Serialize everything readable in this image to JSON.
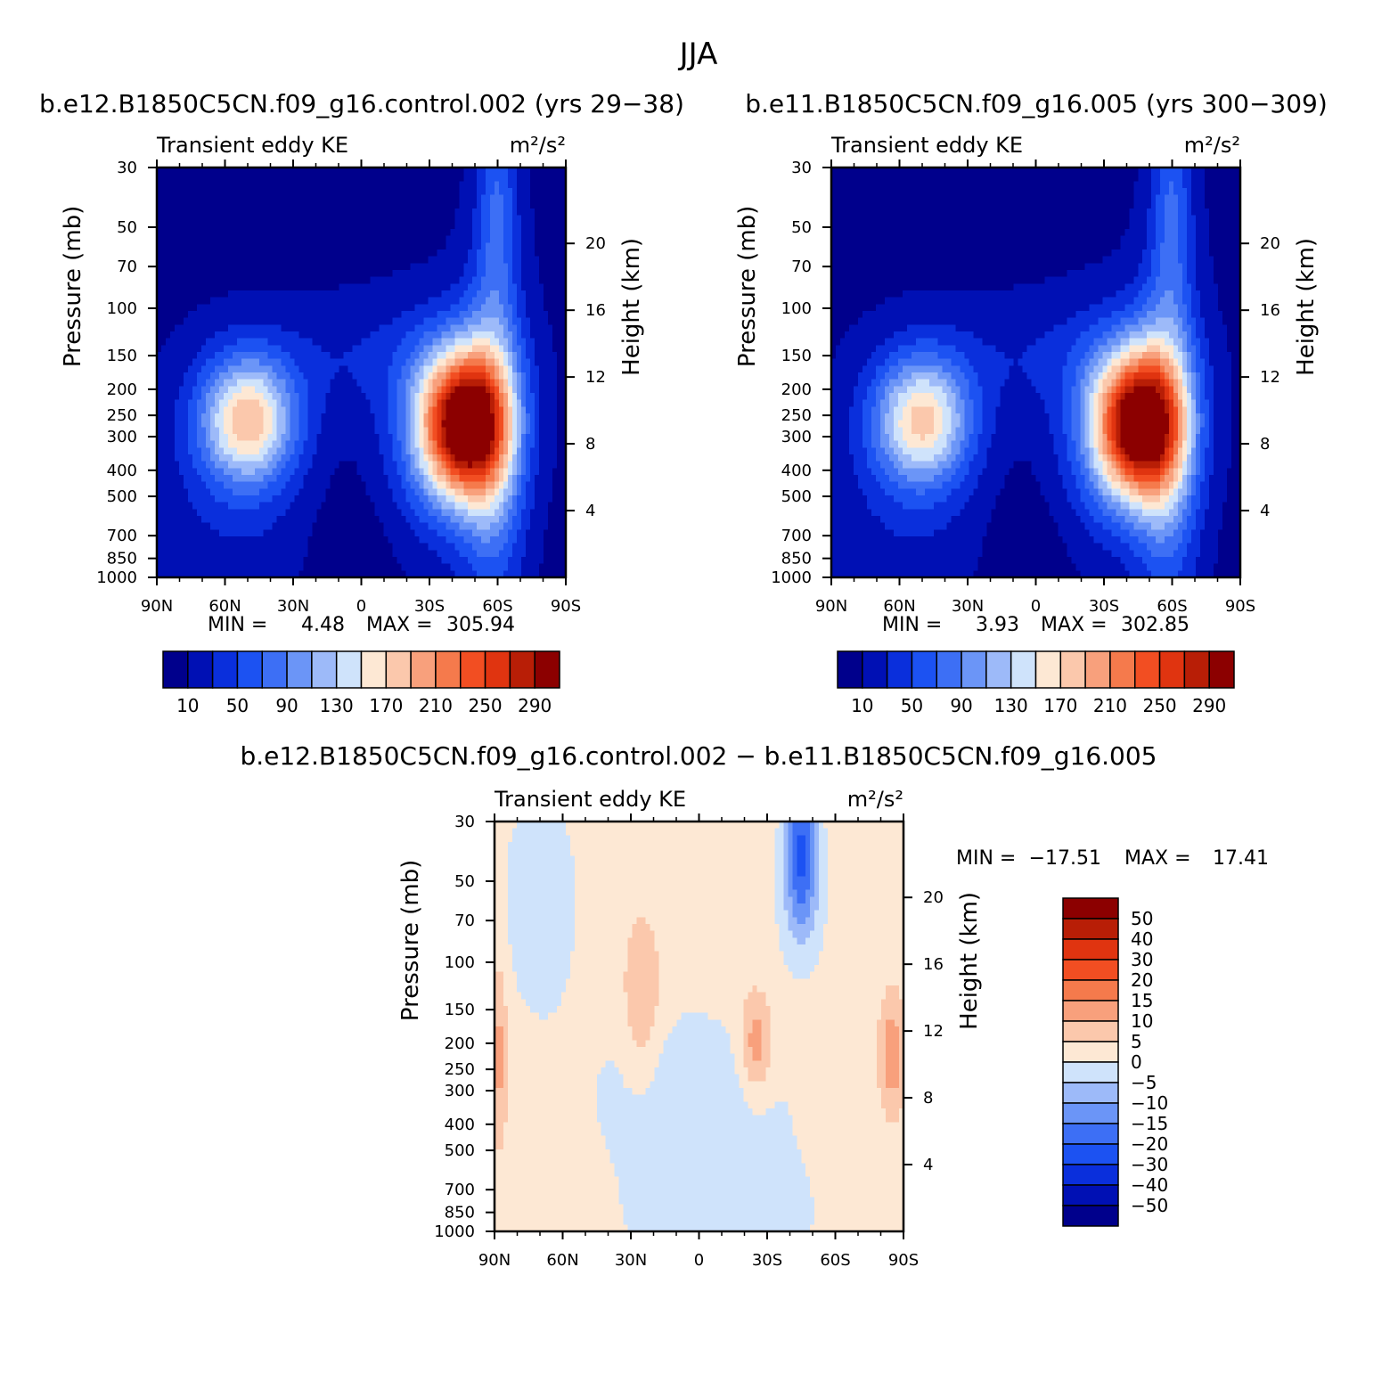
{
  "figure": {
    "title": "JJA"
  },
  "chart_data": [
    {
      "type": "heatmap",
      "id": "control",
      "title": "b.e12.B1850C5CN.f09_g16.control.002 (yrs 29-38)",
      "subtitle_left": "Transient eddy KE",
      "units": "m²/s²",
      "xlabel": "",
      "ylabel": "Pressure (mb)",
      "ylabel_right": "Height (km)",
      "x_ticks": [
        "90N",
        "60N",
        "30N",
        "0",
        "30S",
        "60S",
        "90S"
      ],
      "y_ticks": [
        30,
        50,
        70,
        100,
        150,
        200,
        250,
        300,
        400,
        500,
        700,
        850,
        1000
      ],
      "y_right_ticks": [
        20,
        16,
        12,
        8,
        4
      ],
      "y_scale": "log",
      "min_label": "MIN =",
      "min_value": "4.48",
      "max_label": "MAX =",
      "max_value": "305.94",
      "colorbar": {
        "orientation": "horizontal",
        "labels": [
          "10",
          "50",
          "90",
          "130",
          "170",
          "210",
          "250",
          "290"
        ],
        "colors": [
          "#00008c",
          "#0010b4",
          "#0a2fdc",
          "#1c52f2",
          "#3d6ff5",
          "#6b95f7",
          "#9dbaf9",
          "#cfe3fb",
          "#fde8d4",
          "#fbc8ac",
          "#f8a07c",
          "#f57a4c",
          "#f24e22",
          "#e03410",
          "#b81e06",
          "#8c0000"
        ]
      },
      "features": [
        {
          "lat": -45,
          "p": 250,
          "peak": 305.9
        },
        {
          "lat": 50,
          "p": 250,
          "peak": 180
        }
      ]
    },
    {
      "type": "heatmap",
      "id": "base",
      "title": "b.e11.B1850C5CN.f09_g16.005 (yrs 300-309)",
      "subtitle_left": "Transient eddy KE",
      "units": "m²/s²",
      "xlabel": "",
      "ylabel": "Pressure (mb)",
      "ylabel_right": "Height (km)",
      "x_ticks": [
        "90N",
        "60N",
        "30N",
        "0",
        "30S",
        "60S",
        "90S"
      ],
      "y_ticks": [
        30,
        50,
        70,
        100,
        150,
        200,
        250,
        300,
        400,
        500,
        700,
        850,
        1000
      ],
      "y_right_ticks": [
        20,
        16,
        12,
        8,
        4
      ],
      "y_scale": "log",
      "min_label": "MIN =",
      "min_value": "3.93",
      "max_label": "MAX =",
      "max_value": "302.85",
      "colorbar": {
        "orientation": "horizontal",
        "labels": [
          "10",
          "50",
          "90",
          "130",
          "170",
          "210",
          "250",
          "290"
        ],
        "colors": [
          "#00008c",
          "#0010b4",
          "#0a2fdc",
          "#1c52f2",
          "#3d6ff5",
          "#6b95f7",
          "#9dbaf9",
          "#cfe3fb",
          "#fde8d4",
          "#fbc8ac",
          "#f8a07c",
          "#f57a4c",
          "#f24e22",
          "#e03410",
          "#b81e06",
          "#8c0000"
        ]
      },
      "features": [
        {
          "lat": -45,
          "p": 250,
          "peak": 302.9
        },
        {
          "lat": 50,
          "p": 250,
          "peak": 172
        }
      ]
    },
    {
      "type": "heatmap",
      "id": "difference",
      "title": "b.e12.B1850C5CN.f09_g16.control.002 - b.e11.B1850C5CN.f09_g16.005",
      "subtitle_left": "Transient eddy KE",
      "units": "m²/s²",
      "xlabel": "",
      "ylabel": "Pressure (mb)",
      "ylabel_right": "Height (km)",
      "x_ticks": [
        "90N",
        "60N",
        "30N",
        "0",
        "30S",
        "60S",
        "90S"
      ],
      "y_ticks": [
        30,
        50,
        70,
        100,
        150,
        200,
        250,
        300,
        400,
        500,
        700,
        850,
        1000
      ],
      "y_right_ticks": [
        20,
        16,
        12,
        8,
        4
      ],
      "y_scale": "log",
      "min_label": "MIN =",
      "min_value": "-17.51",
      "max_label": "MAX =",
      "max_value": "17.41",
      "colorbar": {
        "orientation": "vertical",
        "labels": [
          "50",
          "40",
          "30",
          "20",
          "15",
          "10",
          "5",
          "0",
          "-5",
          "-10",
          "-15",
          "-20",
          "-30",
          "-40",
          "-50"
        ],
        "colors": [
          "#8c0000",
          "#b81e06",
          "#e03410",
          "#f24e22",
          "#f57a4c",
          "#f8a07c",
          "#fbc8ac",
          "#fde8d4",
          "#cfe3fb",
          "#9dbaf9",
          "#6b95f7",
          "#3d6ff5",
          "#1c52f2",
          "#0a2fdc",
          "#0010b4",
          "#00008c"
        ]
      },
      "features": [
        {
          "lat": 88,
          "p": 220,
          "peak": 12
        },
        {
          "lat": 25,
          "p": 140,
          "peak": 10
        },
        {
          "lat": -25,
          "p": 200,
          "peak": 14
        },
        {
          "lat": -85,
          "p": 220,
          "peak": 14
        },
        {
          "lat": -45,
          "p": 35,
          "peak": -17.5
        },
        {
          "lat": -45,
          "p": 60,
          "peak": -9
        },
        {
          "lat": 70,
          "p": 60,
          "peak": -3
        },
        {
          "lat": 5,
          "p": 300,
          "peak": -3
        },
        {
          "lat": -10,
          "p": 900,
          "peak": -3
        }
      ]
    }
  ]
}
